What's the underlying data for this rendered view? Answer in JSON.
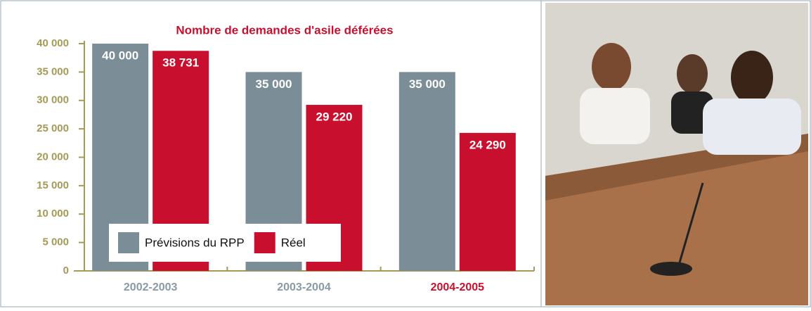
{
  "chart_data": {
    "type": "bar",
    "title": "Nombre de demandes d'asile déférées",
    "categories": [
      "2002-2003",
      "2003-2004",
      "2004-2005"
    ],
    "series": [
      {
        "name": "Prévisions du RPP",
        "color": "#7b8e98",
        "values": [
          40000,
          35000,
          35000
        ],
        "value_labels": [
          "40 000",
          "35 000",
          "35 000"
        ]
      },
      {
        "name": "Réel",
        "color": "#c8102e",
        "values": [
          38731,
          29220,
          24290
        ],
        "value_labels": [
          "38 731",
          "29 220",
          "24 290"
        ]
      }
    ],
    "ylim": [
      0,
      40000
    ],
    "yticks": [
      0,
      {
        "value": 5000,
        "label": "5 000"
      },
      {
        "value": 10000,
        "label": "10 000"
      },
      {
        "value": 15000,
        "label": "15 000"
      },
      {
        "value": 20000,
        "label": "20 000"
      },
      {
        "value": 25000,
        "label": "25 000"
      },
      {
        "value": 30000,
        "label": "30 000"
      },
      {
        "value": 35000,
        "label": "35 000"
      },
      {
        "value": 40000,
        "label": "40 000"
      }
    ],
    "grid": false
  }
}
